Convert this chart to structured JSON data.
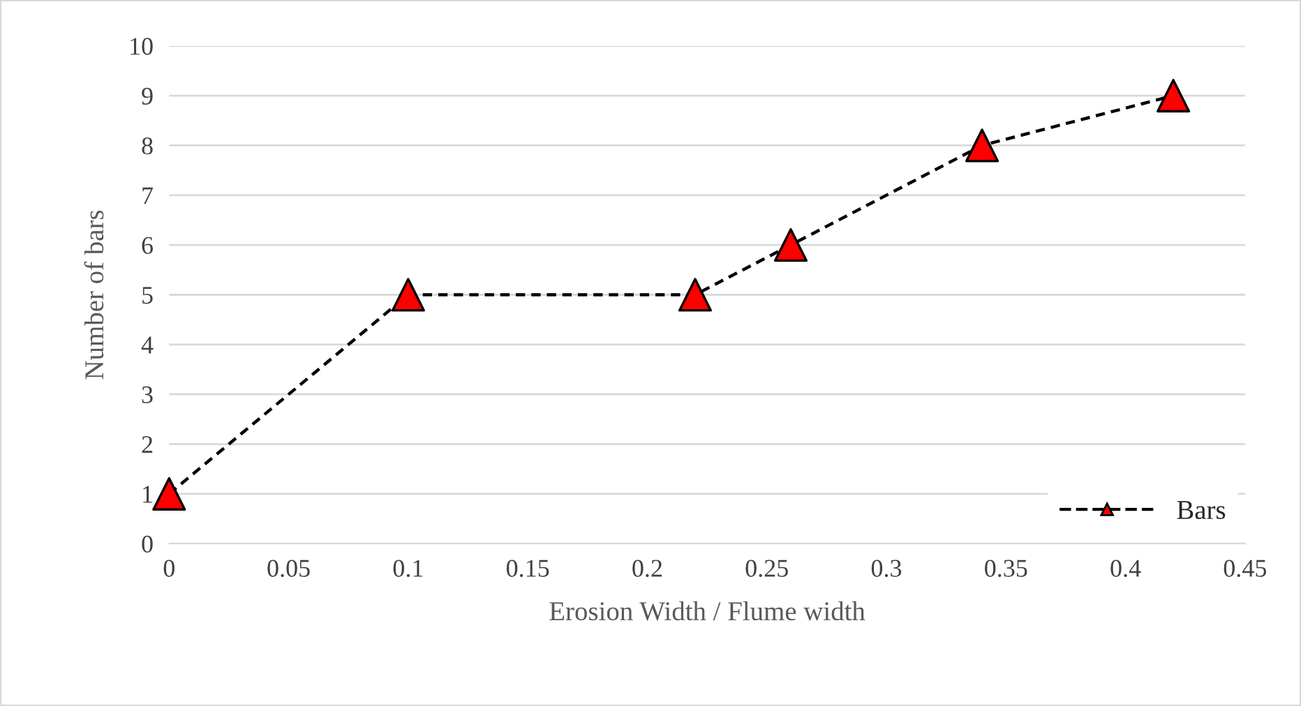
{
  "chart_data": {
    "type": "line",
    "xlabel": "Erosion Width / Flume width",
    "ylabel": "Number of bars",
    "series": [
      {
        "name": "Bars",
        "color": "#000000",
        "colors": [
          "#ff0000",
          "#ff0000",
          "#ff0000",
          "#ff0000",
          "#ff0000",
          "#ff0000"
        ],
        "x": [
          0,
          0.1,
          0.22,
          0.26,
          0.34,
          0.42
        ],
        "values": [
          1,
          5,
          5,
          6,
          8,
          9
        ]
      }
    ],
    "xlim": [
      0,
      0.45
    ],
    "xticks": [
      0,
      0.05,
      0.1,
      0.15,
      0.2,
      0.25,
      0.3,
      0.35,
      0.4,
      0.45
    ],
    "ylim": [
      0,
      10
    ],
    "yticks": [
      0,
      1,
      2,
      3,
      4,
      5,
      6,
      7,
      8,
      9,
      10
    ],
    "grid": "y",
    "legend": "bottom right",
    "marker": "triangle",
    "line_style": "dashed"
  }
}
